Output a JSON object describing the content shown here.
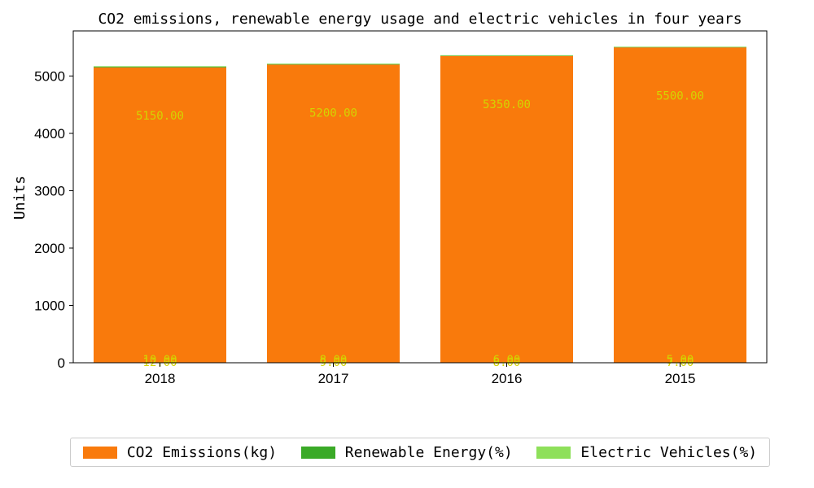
{
  "chart_data": {
    "type": "bar",
    "stacked": true,
    "title": "CO2 emissions, renewable energy usage and electric vehicles in four years",
    "xlabel": "",
    "ylabel": "Units",
    "categories": [
      "2018",
      "2017",
      "2016",
      "2015"
    ],
    "ylim": [
      0,
      5800
    ],
    "yticks": [
      0,
      1000,
      2000,
      3000,
      4000,
      5000
    ],
    "series": [
      {
        "name": "CO2 Emissions(kg)",
        "values": [
          5150,
          5200,
          5350,
          5500
        ],
        "color": "#f97a0c",
        "labels": [
          "5150.00",
          "5200.00",
          "5350.00",
          "5500.00"
        ]
      },
      {
        "name": "Renewable Energy(%)",
        "values": [
          12,
          9,
          8,
          7
        ],
        "color": "#3aaa27",
        "labels": [
          "12.00",
          "9.00",
          "8.00",
          "7.00"
        ]
      },
      {
        "name": "Electric Vehicles(%)",
        "values": [
          10,
          8,
          6,
          5
        ],
        "color": "#8ee05a",
        "labels": [
          "10.00",
          "8.00",
          "6.00",
          "5.00"
        ]
      }
    ],
    "label_color": "#d4d400",
    "grid": false,
    "legend_position": "bottom"
  }
}
